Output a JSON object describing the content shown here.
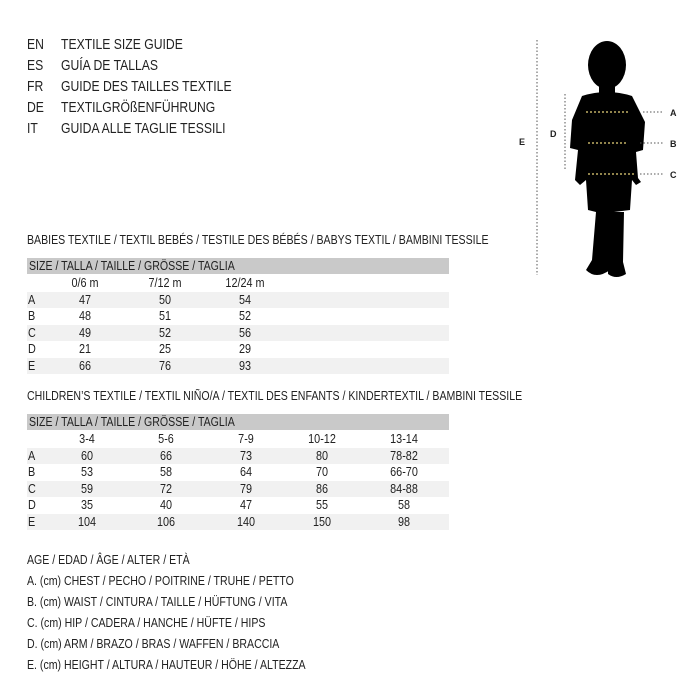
{
  "languages": [
    {
      "code": "EN",
      "text": "TEXTILE SIZE GUIDE"
    },
    {
      "code": "ES",
      "text": "GUÍA DE TALLAS"
    },
    {
      "code": "FR",
      "text": "GUIDE DES TAILLES TEXTILE"
    },
    {
      "code": "DE",
      "text": "TEXTILGRÖßENFÜHRUNG"
    },
    {
      "code": "IT",
      "text": "GUIDA ALLE TAGLIE TESSILI"
    }
  ],
  "babies": {
    "heading": "BABIES TEXTILE / TEXTIL BEBÉS / TESTILE DES BÉBÉS / BABYS TEXTIL / BAMBINI TESSILE",
    "size_label": "SIZE / TALLA / TAILLE / GRÖSSE / TAGLIA",
    "columns": [
      "0/6 m",
      "7/12 m",
      "12/24 m"
    ],
    "rows": [
      {
        "label": "A",
        "values": [
          "47",
          "50",
          "54"
        ]
      },
      {
        "label": "B",
        "values": [
          "48",
          "51",
          "52"
        ]
      },
      {
        "label": "C",
        "values": [
          "49",
          "52",
          "56"
        ]
      },
      {
        "label": "D",
        "values": [
          "21",
          "25",
          "29"
        ]
      },
      {
        "label": "E",
        "values": [
          "66",
          "76",
          "93"
        ]
      }
    ]
  },
  "children": {
    "heading": "CHILDREN’S TEXTILE / TEXTIL NIÑO/A / TEXTIL DES ENFANTS / KINDERTEXTIL / BAMBINI TESSILE",
    "size_label": "SIZE / TALLA / TAILLE / GRÖSSE / TAGLIA",
    "columns": [
      "3-4",
      "5-6",
      "7-9",
      "10-12",
      "13-14"
    ],
    "rows": [
      {
        "label": "A",
        "values": [
          "60",
          "66",
          "73",
          "80",
          "78-82"
        ]
      },
      {
        "label": "B",
        "values": [
          "53",
          "58",
          "64",
          "70",
          "66-70"
        ]
      },
      {
        "label": "C",
        "values": [
          "59",
          "72",
          "79",
          "86",
          "84-88"
        ]
      },
      {
        "label": "D",
        "values": [
          "35",
          "40",
          "47",
          "55",
          "58"
        ]
      },
      {
        "label": "E",
        "values": [
          "104",
          "106",
          "140",
          "150",
          "98"
        ]
      }
    ]
  },
  "legend": [
    "AGE / EDAD / ÂGE / ALTER / ETÀ",
    "A. (cm) CHEST / PECHO / POITRINE / TRUHE / PETTO",
    "B. (cm) WAIST / CINTURA / TAILLE / HÜFTUNG / VITA",
    "C. (cm) HIP / CADERA / HANCHE / HÜFTE / HIPS",
    "D. (cm) ARM / BRAZO / BRAS / WAFFEN / BRACCIA",
    "E. (cm) HEIGHT / ALTURA / HAUTEUR / HÖHE / ALTEZZA"
  ],
  "figure": {
    "labels": {
      "A": "A",
      "B": "B",
      "C": "C",
      "D": "D",
      "E": "E"
    },
    "marker_color": "#e8d27a"
  }
}
